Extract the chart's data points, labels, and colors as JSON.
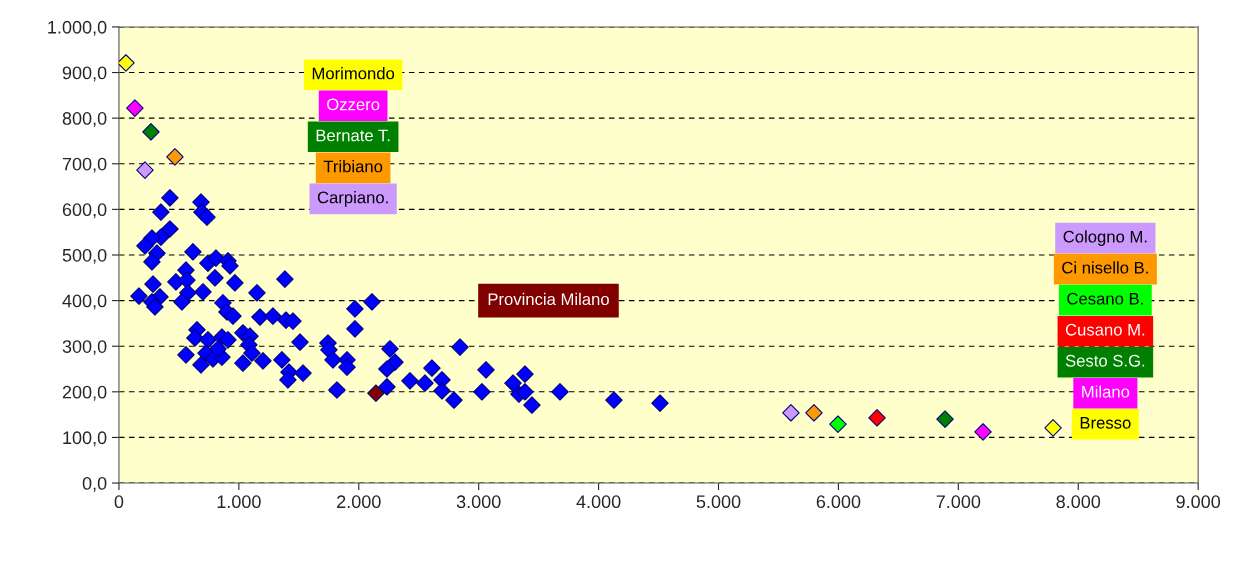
{
  "chart_data": {
    "type": "scatter",
    "marker": "diamond",
    "legend": false,
    "grid": "y",
    "line_style": "dashed",
    "xlim": [
      0,
      9000
    ],
    "ylim": [
      0,
      1000
    ],
    "xticks": [
      {
        "value": 0,
        "label": "0"
      },
      {
        "value": 1000,
        "label": "1.000"
      },
      {
        "value": 2000,
        "label": "2.000"
      },
      {
        "value": 3000,
        "label": "3.000"
      },
      {
        "value": 4000,
        "label": "4.000"
      },
      {
        "value": 5000,
        "label": "5.000"
      },
      {
        "value": 6000,
        "label": "6.000"
      },
      {
        "value": 7000,
        "label": "7.000"
      },
      {
        "value": 8000,
        "label": "8.000"
      },
      {
        "value": 9000,
        "label": "9.000"
      }
    ],
    "yticks": [
      {
        "value": 0,
        "label": "0,0"
      },
      {
        "value": 100,
        "label": "100,0"
      },
      {
        "value": 200,
        "label": "200,0"
      },
      {
        "value": 300,
        "label": "300,0"
      },
      {
        "value": 400,
        "label": "400,0"
      },
      {
        "value": 500,
        "label": "500,0"
      },
      {
        "value": 600,
        "label": "600,0"
      },
      {
        "value": 700,
        "label": "700,0"
      },
      {
        "value": 800,
        "label": "800,0"
      },
      {
        "value": 900,
        "label": "900,0"
      },
      {
        "value": 1000,
        "label": "1.000,0"
      }
    ],
    "series": [
      {
        "color": "#0000ff",
        "x": [
          425,
          350,
          684,
          692,
          734,
          425,
          350,
          275,
          217,
          317,
          275,
          617,
          742,
          809,
          909,
          926,
          1384,
          559,
          475,
          567,
          575,
          525,
          701,
          801,
          967,
          284,
          342,
          167,
          275,
          300,
          1151,
          867,
          901,
          951,
          1176,
          1284,
          1393,
          1451,
          1968,
          2110,
          1968,
          651,
          634,
          742,
          859,
          909,
          1034,
          1093,
          1084,
          1510,
          1743,
          1751,
          2260,
          559,
          726,
          684,
          784,
          859,
          826,
          1109,
          1034,
          1201,
          1359,
          1418,
          1535,
          1409,
          1785,
          1902,
          1902,
          2302,
          2235,
          1818,
          2235,
          2427,
          2844,
          2610,
          2552,
          2694,
          2694,
          2794,
          3061,
          3027,
          3286,
          3386,
          3336,
          3386,
          3444,
          3678,
          4128,
          4512
        ],
        "values": [
          625,
          594,
          616,
          594,
          583,
          557,
          539,
          537,
          520,
          504,
          485,
          507,
          482,
          493,
          487,
          476,
          447,
          467,
          441,
          445,
          417,
          397,
          419,
          450,
          439,
          436,
          408,
          410,
          397,
          386,
          417,
          395,
          375,
          366,
          364,
          366,
          357,
          355,
          382,
          397,
          338,
          336,
          318,
          314,
          320,
          314,
          329,
          322,
          303,
          309,
          307,
          292,
          294,
          281,
          285,
          259,
          272,
          276,
          294,
          285,
          263,
          268,
          270,
          243,
          241,
          226,
          270,
          270,
          254,
          265,
          250,
          204,
          211,
          224,
          298,
          252,
          219,
          226,
          202,
          182,
          248,
          200,
          219,
          239,
          195,
          200,
          171,
          200,
          182,
          175
        ]
      },
      {
        "name": "Morimondo",
        "color": "#ffff00",
        "x": [
          58
        ],
        "values": [
          921
        ]
      },
      {
        "name": "Ozzero",
        "color": "#ff00ff",
        "x": [
          133
        ],
        "values": [
          822
        ]
      },
      {
        "name": "Bernate T.",
        "color": "#008000",
        "x": [
          267
        ],
        "values": [
          770
        ]
      },
      {
        "name": "Tribiano",
        "color": "#ff9900",
        "x": [
          467
        ],
        "values": [
          715
        ]
      },
      {
        "name": "Carpiano.",
        "color": "#cc99ff",
        "x": [
          217
        ],
        "values": [
          686
        ]
      },
      {
        "name": "Provincia Milano",
        "color": "#800000",
        "x": [
          2143
        ],
        "values": [
          197
        ]
      },
      {
        "name": "Cologno M.",
        "color": "#cc99ff",
        "x": [
          5604
        ],
        "values": [
          154
        ]
      },
      {
        "name": "Ci nisello B.",
        "color": "#ff9900",
        "x": [
          5796
        ],
        "values": [
          154
        ]
      },
      {
        "name": "Cesano B.",
        "color": "#00ff00",
        "x": [
          5996
        ],
        "values": [
          129
        ]
      },
      {
        "name": "Cusano M.",
        "color": "#ff0000",
        "x": [
          6322
        ],
        "values": [
          143
        ]
      },
      {
        "name": "Sesto S.G.",
        "color": "#008000",
        "x": [
          6889
        ],
        "values": [
          140
        ]
      },
      {
        "name": "Milano",
        "color": "#ff00ff",
        "x": [
          7206
        ],
        "values": [
          112
        ]
      },
      {
        "name": "Bresso",
        "color": "#ffff00",
        "x": [
          7790
        ],
        "values": [
          121
        ]
      }
    ]
  }
}
